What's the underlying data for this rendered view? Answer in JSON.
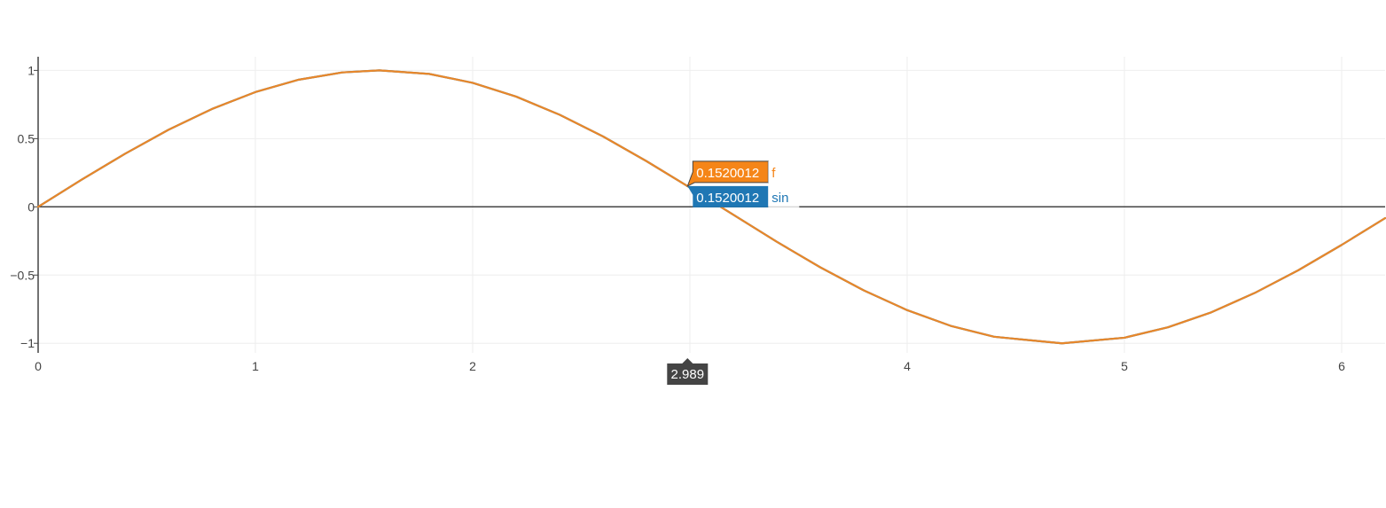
{
  "chart_data": {
    "type": "line",
    "title": "",
    "xlabel": "",
    "ylabel": "",
    "xlim": [
      0,
      6.2
    ],
    "ylim": [
      -1.07,
      1.1
    ],
    "x_ticks": [
      0,
      1,
      2,
      3,
      4,
      5,
      6
    ],
    "x_tick_labels": [
      "0",
      "1",
      "2",
      "",
      "4",
      "5",
      "6"
    ],
    "y_ticks": [
      1,
      0.5,
      0,
      -0.5,
      -1
    ],
    "y_tick_labels": [
      "1",
      "0.5",
      "0",
      "−0.5",
      "−1"
    ],
    "grid": true,
    "series": [
      {
        "name": "sin",
        "color": "#1f77b4",
        "x": [
          0,
          0.2,
          0.4,
          0.6,
          0.8,
          1.0,
          1.2,
          1.4,
          1.5708,
          1.8,
          2.0,
          2.2,
          2.4,
          2.6,
          2.8,
          2.989,
          3.1416,
          3.4,
          3.6,
          3.8,
          4.0,
          4.2,
          4.4,
          4.7124,
          5.0,
          5.2,
          5.4,
          5.6,
          5.8,
          6.0,
          6.2
        ],
        "y": [
          0,
          0.199,
          0.389,
          0.565,
          0.717,
          0.841,
          0.932,
          0.985,
          1.0,
          0.974,
          0.909,
          0.808,
          0.675,
          0.516,
          0.335,
          0.152,
          0,
          -0.256,
          -0.443,
          -0.612,
          -0.757,
          -0.872,
          -0.952,
          -1.0,
          -0.959,
          -0.883,
          -0.773,
          -0.631,
          -0.465,
          -0.279,
          -0.083
        ]
      },
      {
        "name": "f",
        "color": "#e8872a",
        "x": [
          0,
          0.2,
          0.4,
          0.6,
          0.8,
          1.0,
          1.2,
          1.4,
          1.5708,
          1.8,
          2.0,
          2.2,
          2.4,
          2.6,
          2.8,
          2.989,
          3.1416,
          3.4,
          3.6,
          3.8,
          4.0,
          4.2,
          4.4,
          4.7124,
          5.0,
          5.2,
          5.4,
          5.6,
          5.8,
          6.0,
          6.2
        ],
        "y": [
          0,
          0.199,
          0.389,
          0.565,
          0.717,
          0.841,
          0.932,
          0.985,
          1.0,
          0.974,
          0.909,
          0.808,
          0.675,
          0.516,
          0.335,
          0.152,
          0,
          -0.256,
          -0.443,
          -0.612,
          -0.757,
          -0.872,
          -0.952,
          -1.0,
          -0.959,
          -0.883,
          -0.773,
          -0.631,
          -0.465,
          -0.279,
          -0.083
        ]
      }
    ],
    "hover": {
      "x_value": 2.989,
      "x_label": "2.989",
      "x_label_bg": "#444444",
      "labels": [
        {
          "value_text": "0.1520012",
          "name": "f",
          "bg": "#f58518",
          "text_color": "#ffffff",
          "name_color": "#f58518"
        },
        {
          "value_text": "0.1520012",
          "name": "sin",
          "bg": "#1f77b4",
          "text_color": "#ffffff",
          "name_color": "#1f77b4"
        }
      ]
    }
  }
}
